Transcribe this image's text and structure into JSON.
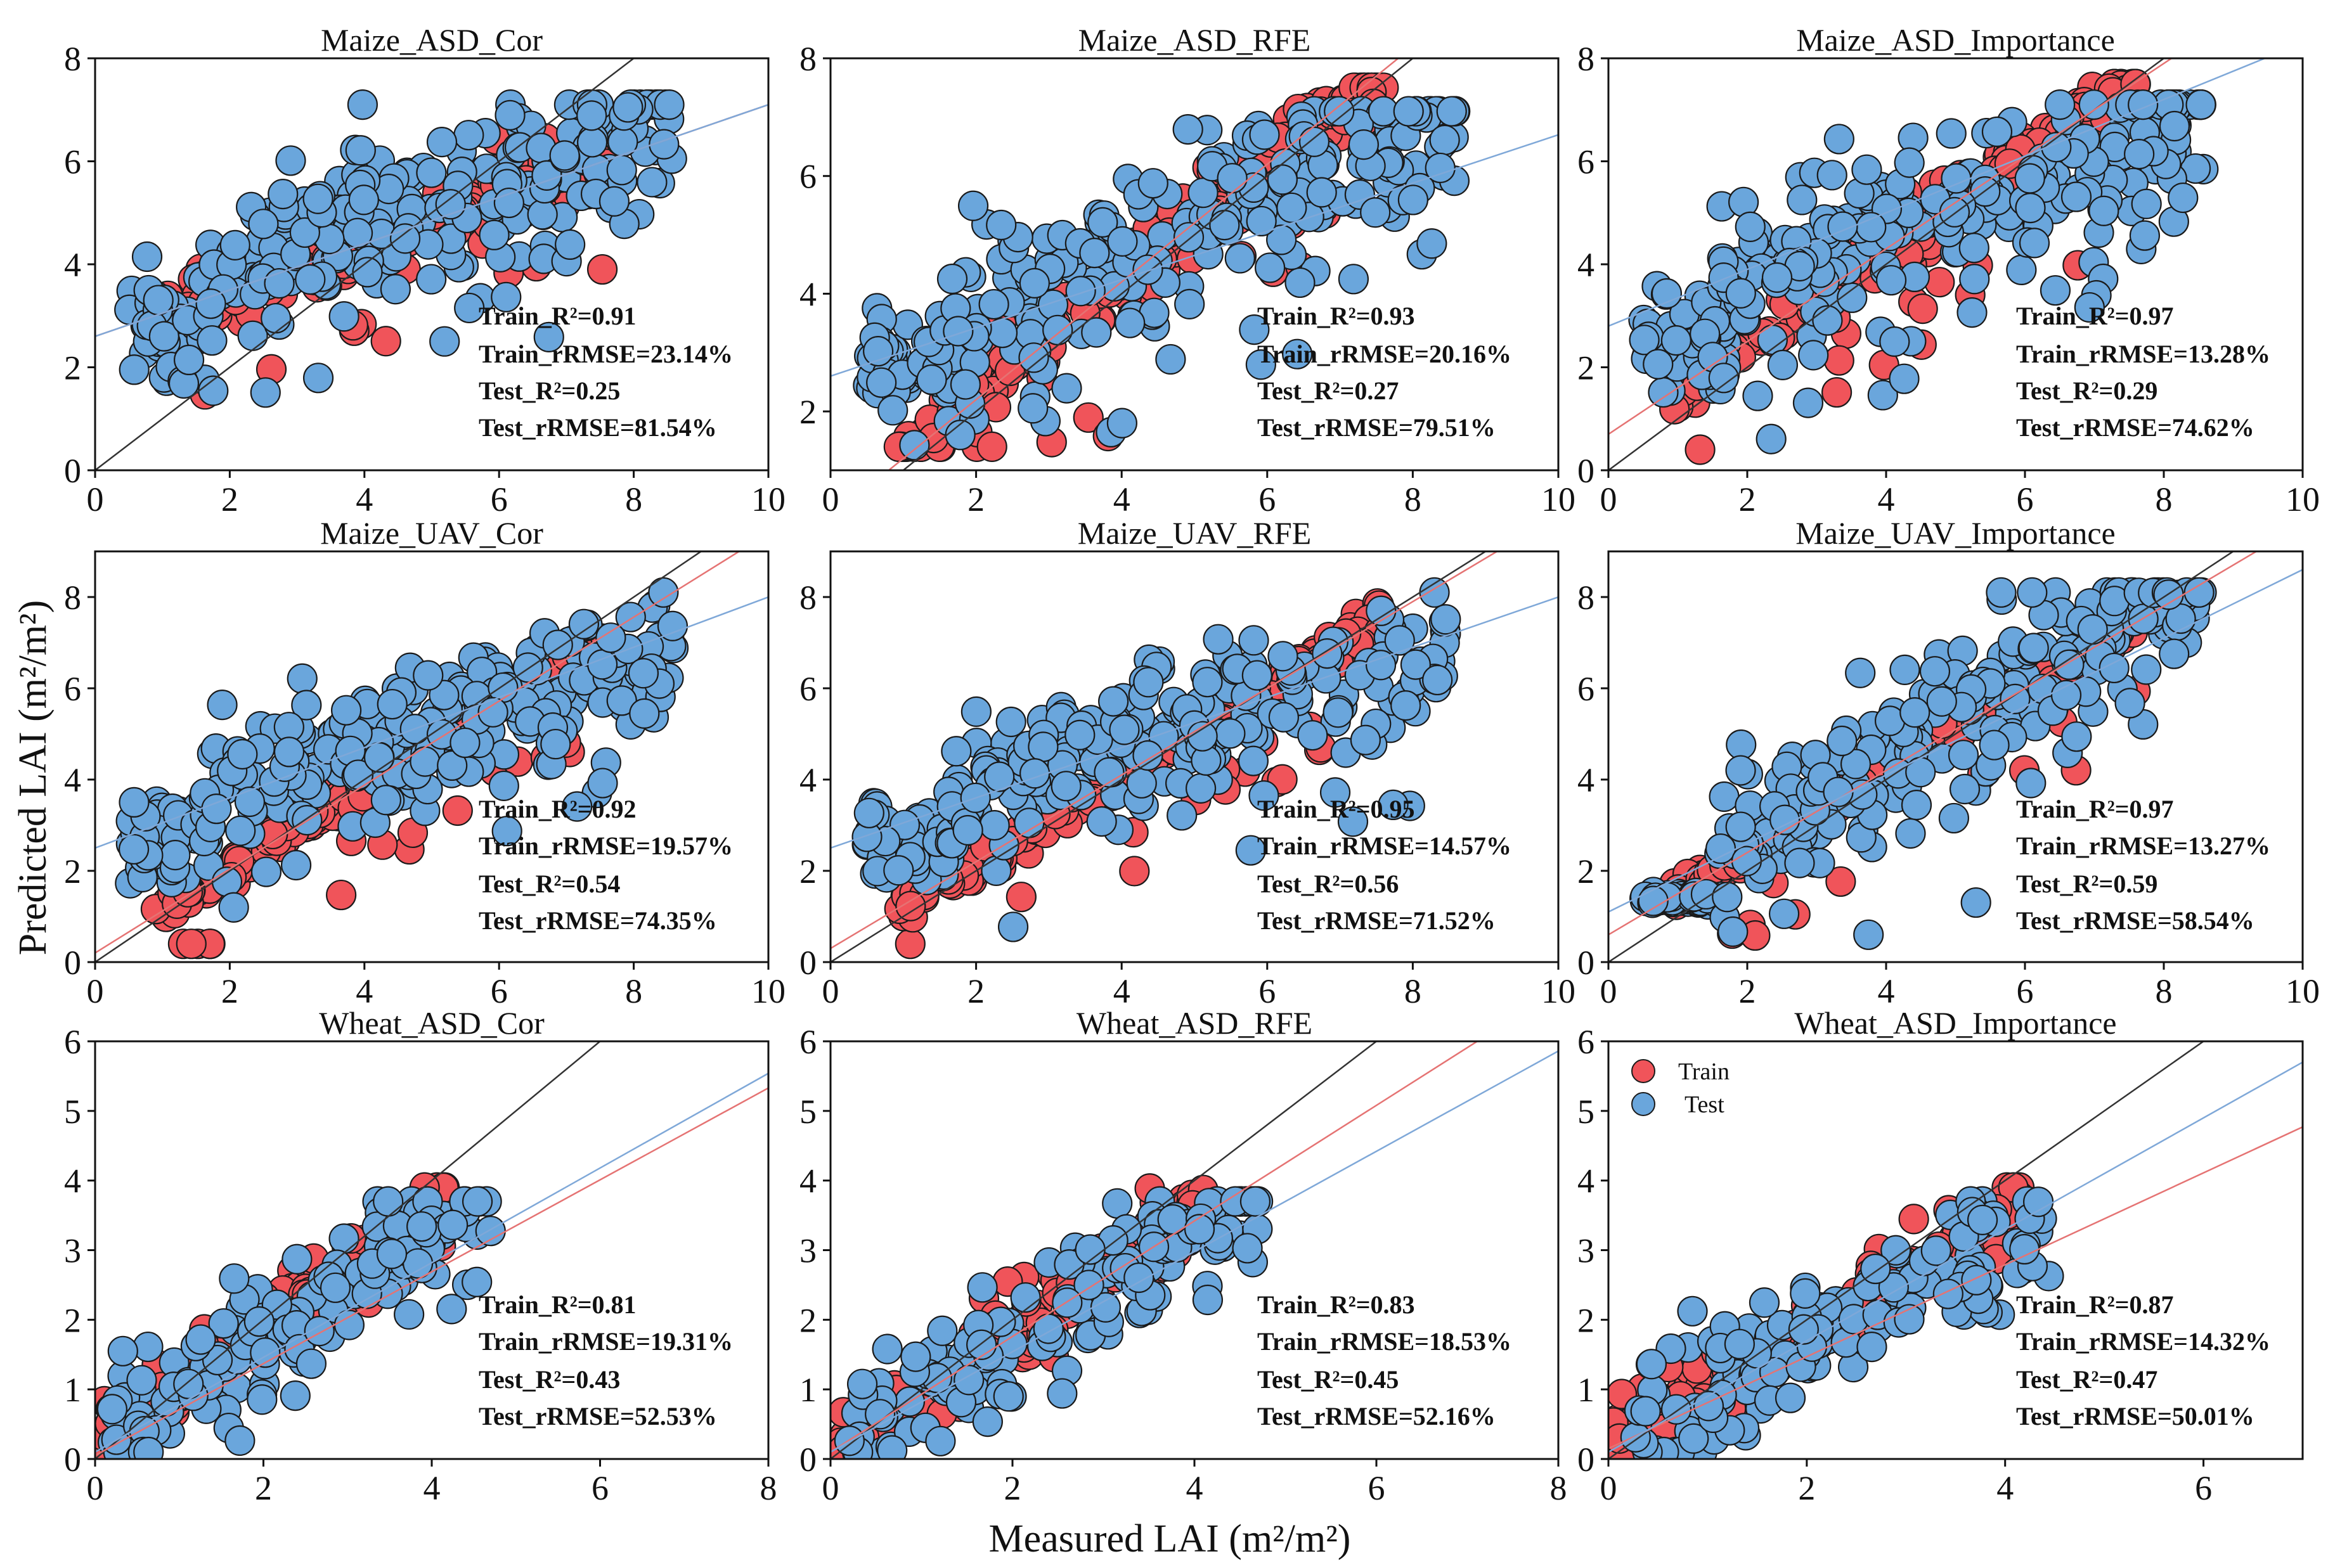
{
  "figure": {
    "xlabel": "Measured LAI (m²/m²)",
    "ylabel": "Predicted LAI (m²/m²)"
  },
  "legend": {
    "train_label": "Train",
    "test_label": "Test"
  },
  "colors": {
    "train_fill": "#f0545a",
    "test_fill": "#6aa6dc",
    "marker_edge": "#1a1a1a",
    "one_to_one": "#333333",
    "train_fit": "#e57373",
    "test_fit": "#7fa8d8"
  },
  "chart_data": [
    {
      "type": "scatter",
      "title": "Maize_ASD_Cor",
      "xlim": [
        0,
        10
      ],
      "ylim": [
        0,
        8
      ],
      "xticks": [
        0,
        2,
        4,
        6,
        8,
        10
      ],
      "yticks": [
        0,
        2,
        4,
        6,
        8
      ],
      "train_fit": [
        0.45,
        2.6
      ],
      "test_fit": [
        0.45,
        2.6
      ],
      "stats": {
        "train_r2": "Train_R²=0.91",
        "train_rrmse": "Train_rRMSE=23.14%",
        "test_r2": "Test_R²=0.25",
        "test_rrmse": "Test_rRMSE=81.54%"
      }
    },
    {
      "type": "scatter",
      "title": "Maize_ASD_RFE",
      "xlim": [
        0,
        10
      ],
      "ylim": [
        1,
        8
      ],
      "xticks": [
        0,
        2,
        4,
        6,
        8,
        10
      ],
      "yticks": [
        2,
        4,
        6,
        8
      ],
      "train_fit": [
        1.0,
        0.2
      ],
      "test_fit": [
        0.41,
        2.6
      ],
      "stats": {
        "train_r2": "Train_R²=0.93",
        "train_rrmse": "Train_rRMSE=20.16%",
        "test_r2": "Test_R²=0.27",
        "test_rrmse": "Test_rRMSE=79.51%"
      }
    },
    {
      "type": "scatter",
      "title": "Maize_ASD_Importance",
      "xlim": [
        0,
        10
      ],
      "ylim": [
        0,
        8
      ],
      "xticks": [
        0,
        2,
        4,
        6,
        8,
        10
      ],
      "yticks": [
        0,
        2,
        4,
        6,
        8
      ],
      "train_fit": [
        0.9,
        0.7
      ],
      "test_fit": [
        0.55,
        2.8
      ],
      "stats": {
        "train_r2": "Train_R²=0.97",
        "train_rrmse": "Train_rRMSE=13.28%",
        "test_r2": "Test_R²=0.29",
        "test_rrmse": "Test_rRMSE=74.62%"
      }
    },
    {
      "type": "scatter",
      "title": "Maize_UAV_Cor",
      "xlim": [
        0,
        10
      ],
      "ylim": [
        0,
        9
      ],
      "xticks": [
        0,
        2,
        4,
        6,
        8,
        10
      ],
      "yticks": [
        0,
        2,
        4,
        6,
        8
      ],
      "train_fit": [
        0.92,
        0.2
      ],
      "test_fit": [
        0.55,
        2.5
      ],
      "stats": {
        "train_r2": "Train_R²=0.92",
        "train_rrmse": "Train_rRMSE=19.57%",
        "test_r2": "Test_R²=0.54",
        "test_rrmse": "Test_rRMSE=74.35%"
      }
    },
    {
      "type": "scatter",
      "title": "Maize_UAV_RFE",
      "xlim": [
        0,
        10
      ],
      "ylim": [
        0,
        9
      ],
      "xticks": [
        0,
        2,
        4,
        6,
        8,
        10
      ],
      "yticks": [
        0,
        2,
        4,
        6,
        8
      ],
      "train_fit": [
        0.95,
        0.3
      ],
      "test_fit": [
        0.55,
        2.5
      ],
      "stats": {
        "train_r2": "Train_R²=0.95",
        "train_rrmse": "Train_rRMSE=14.57%",
        "test_r2": "Test_R²=0.56",
        "test_rrmse": "Test_rRMSE=71.52%"
      }
    },
    {
      "type": "scatter",
      "title": "Maize_UAV_Importance",
      "xlim": [
        0,
        10
      ],
      "ylim": [
        0,
        9
      ],
      "xticks": [
        0,
        2,
        4,
        6,
        8,
        10
      ],
      "yticks": [
        0,
        2,
        4,
        6,
        8
      ],
      "train_fit": [
        0.9,
        0.6
      ],
      "test_fit": [
        0.75,
        1.1
      ],
      "stats": {
        "train_r2": "Train_R²=0.97",
        "train_rrmse": "Train_rRMSE=13.27%",
        "test_r2": "Test_R²=0.59",
        "test_rrmse": "Test_rRMSE=58.54%"
      }
    },
    {
      "type": "scatter",
      "title": "Wheat_ASD_Cor",
      "xlim": [
        0,
        8
      ],
      "ylim": [
        0,
        6
      ],
      "xticks": [
        0,
        2,
        4,
        6,
        8
      ],
      "yticks": [
        0,
        1,
        2,
        3,
        4,
        5,
        6
      ],
      "train_fit": [
        0.66,
        0.05
      ],
      "test_fit": [
        0.68,
        0.1
      ],
      "stats": {
        "train_r2": "Train_R²=0.81",
        "train_rrmse": "Train_rRMSE=19.31%",
        "test_r2": "Test_R²=0.43",
        "test_rrmse": "Test_rRMSE=52.53%"
      }
    },
    {
      "type": "scatter",
      "title": "Wheat_ASD_RFE",
      "xlim": [
        0,
        8
      ],
      "ylim": [
        0,
        6
      ],
      "xticks": [
        0,
        2,
        4,
        6,
        8
      ],
      "yticks": [
        0,
        1,
        2,
        3,
        4,
        5,
        6
      ],
      "train_fit": [
        0.83,
        0.1
      ],
      "test_fit": [
        0.72,
        0.1
      ],
      "stats": {
        "train_r2": "Train_R²=0.83",
        "train_rrmse": "Train_rRMSE=18.53%",
        "test_r2": "Test_R²=0.45",
        "test_rrmse": "Test_rRMSE=52.16%"
      }
    },
    {
      "type": "scatter",
      "title": "Wheat_ASD_Importance",
      "xlim": [
        0,
        7
      ],
      "ylim": [
        0,
        6
      ],
      "xticks": [
        0,
        2,
        4,
        6
      ],
      "yticks": [
        0,
        1,
        2,
        3,
        4,
        5,
        6
      ],
      "train_fit": [
        0.66,
        0.15
      ],
      "test_fit": [
        0.8,
        0.1
      ],
      "stats": {
        "train_r2": "Train_R²=0.87",
        "train_rrmse": "Train_rRMSE=14.32%",
        "test_r2": "Test_R²=0.47",
        "test_rrmse": "Test_rRMSE=50.01%"
      },
      "legend": true
    }
  ]
}
